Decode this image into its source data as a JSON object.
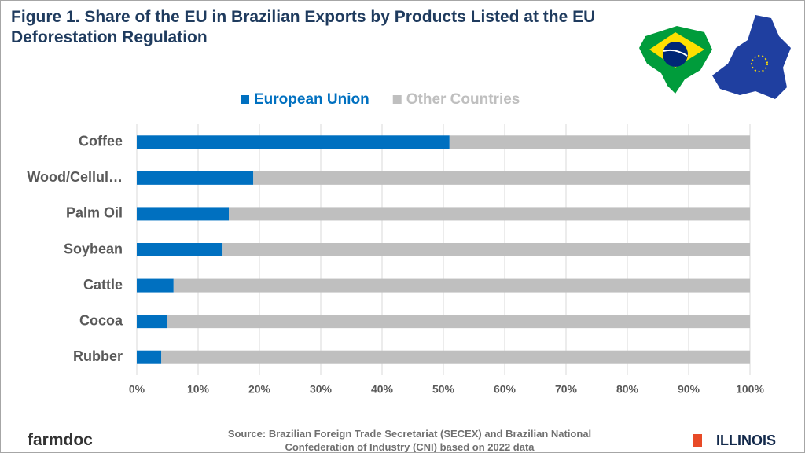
{
  "chart_data": {
    "type": "stacked-bar-horizontal",
    "title": "Figure 1. Share of the EU in Brazilian Exports by Products Listed at the EU Deforestation Regulation",
    "categories": [
      "Coffee",
      "Wood/Cellul…",
      "Palm Oil",
      "Soybean",
      "Cattle",
      "Cocoa",
      "Rubber"
    ],
    "series": [
      {
        "name": "European Union",
        "color": "#0070c0",
        "values": [
          51,
          19,
          15,
          14,
          6,
          5,
          4
        ]
      },
      {
        "name": "Other Countries",
        "color": "#bfbfbf",
        "values": [
          49,
          81,
          85,
          86,
          94,
          95,
          96
        ]
      }
    ],
    "xlim": [
      0,
      100
    ],
    "xticks": [
      {
        "value": 0,
        "label": "0%"
      },
      {
        "value": 10,
        "label": "10%"
      },
      {
        "value": 20,
        "label": "20%"
      },
      {
        "value": 30,
        "label": "30%"
      },
      {
        "value": 40,
        "label": "40%"
      },
      {
        "value": 50,
        "label": "50%"
      },
      {
        "value": 60,
        "label": "60%"
      },
      {
        "value": 70,
        "label": "70%"
      },
      {
        "value": 80,
        "label": "80%"
      },
      {
        "value": 90,
        "label": "90%"
      },
      {
        "value": 100,
        "label": "100%"
      }
    ],
    "grid": true,
    "legend": "top",
    "source": "Source: Brazilian Foreign Trade Secretariat (SECEX) and Brazilian National Confederation of Industry (CNI) based on 2022 data"
  },
  "footer": {
    "left": "farmdoc",
    "right": "ILLINOIS"
  }
}
